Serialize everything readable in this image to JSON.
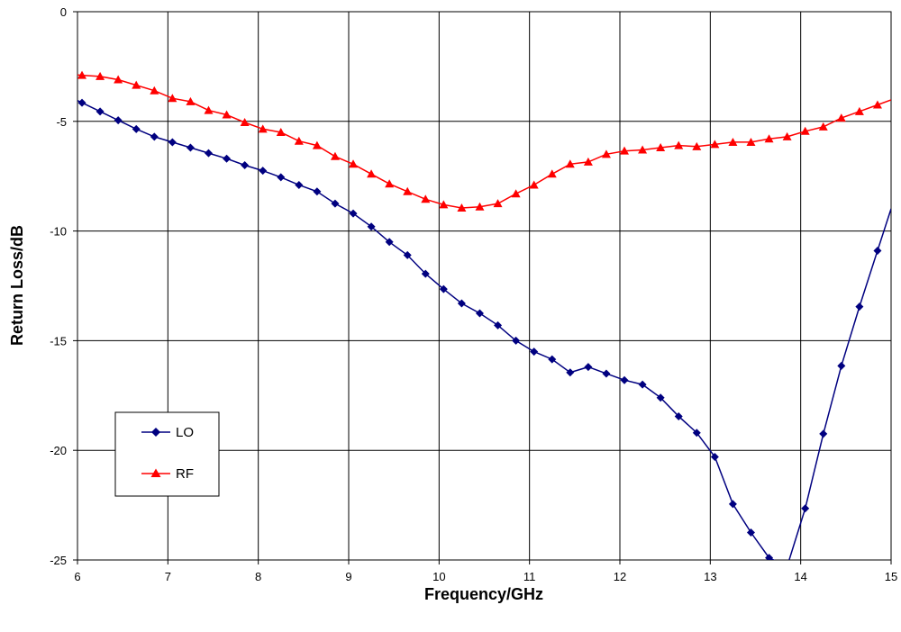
{
  "chart_data": {
    "type": "line",
    "xlabel": "Frequency/GHz",
    "ylabel": "Return Loss/dB",
    "xlim": [
      6,
      15
    ],
    "ylim": [
      -25,
      0
    ],
    "xticks": [
      "6",
      "7",
      "8",
      "9",
      "10",
      "11",
      "12",
      "13",
      "14",
      "15"
    ],
    "yticks": [
      "0",
      "-5",
      "-10",
      "-15",
      "-20",
      "-25"
    ],
    "grid": true,
    "legend_position": "bottom-left",
    "series": [
      {
        "name": "LO",
        "color": "#000080",
        "marker": "diamond",
        "x": [
          6.05,
          6.25,
          6.45,
          6.65,
          6.85,
          7.05,
          7.25,
          7.45,
          7.65,
          7.85,
          8.05,
          8.25,
          8.45,
          8.65,
          8.85,
          9.05,
          9.25,
          9.45,
          9.65,
          9.85,
          10.05,
          10.25,
          10.45,
          10.65,
          10.85,
          11.05,
          11.25,
          11.45,
          11.65,
          11.85,
          12.05,
          12.25,
          12.45,
          12.65,
          12.85,
          13.05,
          13.25,
          13.45,
          13.65,
          13.85,
          14.05,
          14.25,
          14.45,
          14.65,
          14.85
        ],
        "values": [
          -4.15,
          -4.55,
          -4.95,
          -5.35,
          -5.7,
          -5.95,
          -6.2,
          -6.45,
          -6.7,
          -7.0,
          -7.25,
          -7.55,
          -7.9,
          -8.2,
          -8.75,
          -9.2,
          -9.8,
          -10.5,
          -11.1,
          -11.95,
          -12.65,
          -13.3,
          -13.75,
          -14.3,
          -15.0,
          -15.5,
          -15.85,
          -16.45,
          -16.2,
          -16.5,
          -16.8,
          -17.0,
          -17.6,
          -18.45,
          -19.2,
          -20.3,
          -22.45,
          -23.75,
          -24.9,
          -25.3,
          -22.65,
          -19.25,
          -16.15,
          -13.45,
          -10.9
        ]
      },
      {
        "name": "RF",
        "color": "#ff0000",
        "marker": "triangle",
        "x": [
          6.05,
          6.25,
          6.45,
          6.65,
          6.85,
          7.05,
          7.25,
          7.45,
          7.65,
          7.85,
          8.05,
          8.25,
          8.45,
          8.65,
          8.85,
          9.05,
          9.25,
          9.45,
          9.65,
          9.85,
          10.05,
          10.25,
          10.45,
          10.65,
          10.85,
          11.05,
          11.25,
          11.45,
          11.65,
          11.85,
          12.05,
          12.25,
          12.45,
          12.65,
          12.85,
          13.05,
          13.25,
          13.45,
          13.65,
          13.85,
          14.05,
          14.25,
          14.45,
          14.65,
          14.85
        ],
        "values": [
          -2.9,
          -2.95,
          -3.1,
          -3.35,
          -3.6,
          -3.95,
          -4.1,
          -4.5,
          -4.7,
          -5.05,
          -5.35,
          -5.5,
          -5.9,
          -6.1,
          -6.6,
          -6.95,
          -7.4,
          -7.85,
          -8.2,
          -8.55,
          -8.8,
          -8.95,
          -8.9,
          -8.75,
          -8.3,
          -7.9,
          -7.4,
          -6.95,
          -6.85,
          -6.5,
          -6.35,
          -6.3,
          -6.2,
          -6.1,
          -6.15,
          -6.05,
          -5.95,
          -5.95,
          -5.8,
          -5.7,
          -5.45,
          -5.25,
          -4.85,
          -4.55,
          -4.25
        ]
      }
    ]
  }
}
